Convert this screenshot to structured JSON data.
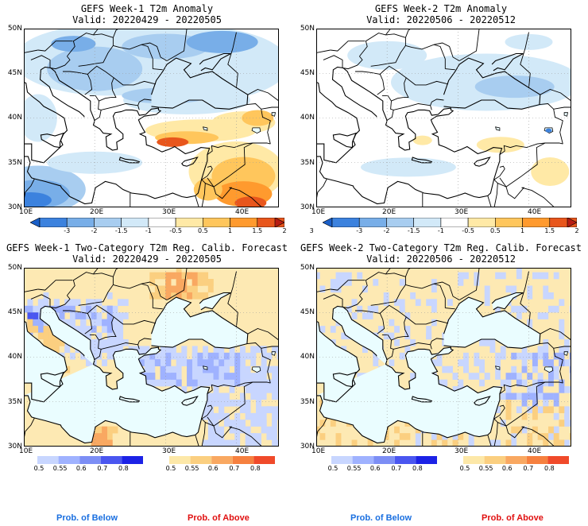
{
  "panels": [
    {
      "title": "GEFS Week-1 T2m Anomaly",
      "valid": "Valid: 20220429 - 20220505",
      "kind": "anomaly",
      "scene": "w1a"
    },
    {
      "title": "GEFS Week-2 T2m Anomaly",
      "valid": "Valid: 20220506 - 20220512",
      "kind": "anomaly",
      "scene": "w2a"
    },
    {
      "title": "GEFS Week-1 Two-Category T2m Reg. Calib. Forecast",
      "valid": "Valid: 20220429 - 20220505",
      "kind": "prob",
      "scene": "w1p"
    },
    {
      "title": "GEFS Week-2 Two-Category T2m Reg. Calib. Forecast",
      "valid": "Valid: 20220506 - 20220512",
      "kind": "prob",
      "scene": "w2p"
    }
  ],
  "axes": {
    "lat_labels": [
      "50N",
      "45N",
      "40N",
      "35N",
      "30N"
    ],
    "lon_labels": [
      "10E",
      "20E",
      "30E",
      "40E"
    ]
  },
  "anomaly_colorbar": {
    "ticks": [
      "-3",
      "-2",
      "-1.5",
      "-1",
      "-0.5",
      "0.5",
      "1",
      "1.5",
      "2",
      "3"
    ],
    "colors": [
      "#1a5fc8",
      "#3c82de",
      "#78aee8",
      "#a8cdf0",
      "#d2e9f8",
      "#ffffff",
      "#ffe9a6",
      "#ffc65c",
      "#ff9a2e",
      "#e8561c",
      "#b81c12"
    ]
  },
  "prob_colorbar": {
    "ticks": [
      "0.5",
      "0.55",
      "0.6",
      "0.7",
      "0.8"
    ],
    "below_colors": [
      "#c8d6ff",
      "#9fb2ff",
      "#7c8ef5",
      "#4a56f0",
      "#1c22e6"
    ],
    "above_colors": [
      "#fde8a8",
      "#fbcf80",
      "#f9a861",
      "#f6803f",
      "#f04a2a"
    ]
  },
  "legend": {
    "below_label": "Prob. of Below",
    "above_label": "Prob. of Above",
    "below_color": "#1a6fe0",
    "above_color": "#e01010"
  }
}
